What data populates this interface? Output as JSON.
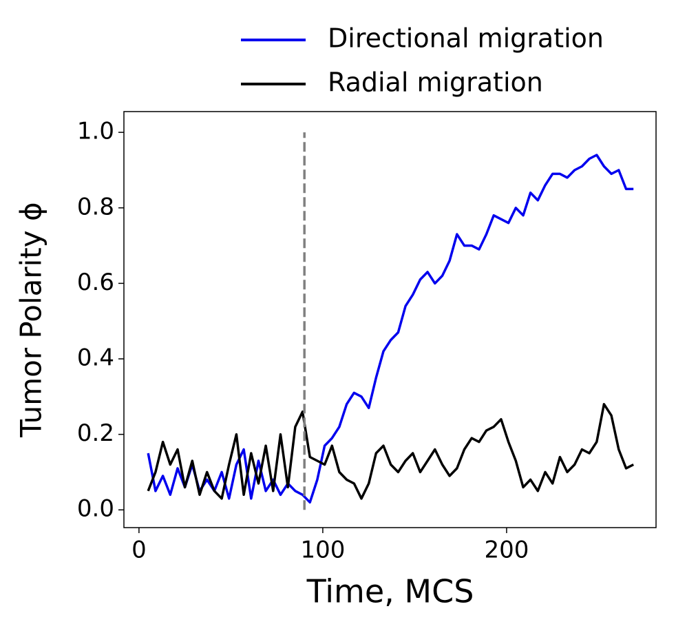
{
  "chart_data": {
    "type": "line",
    "x_label": "Time, MCS",
    "y_label": "Tumor Polarity ϕ",
    "x": [
      5,
      9,
      13,
      17,
      21,
      25,
      29,
      33,
      37,
      41,
      45,
      49,
      53,
      57,
      61,
      65,
      69,
      73,
      77,
      81,
      85,
      89,
      93,
      97,
      101,
      105,
      109,
      113,
      117,
      121,
      125,
      129,
      133,
      137,
      141,
      145,
      149,
      153,
      157,
      161,
      165,
      169,
      173,
      177,
      181,
      185,
      189,
      193,
      197,
      201,
      205,
      209,
      213,
      217,
      221,
      225,
      229,
      233,
      237,
      241,
      245,
      249,
      253,
      257,
      261,
      265,
      269
    ],
    "series": [
      {
        "name": "Directional migration",
        "color": "#0000ee",
        "values": [
          0.15,
          0.05,
          0.09,
          0.04,
          0.11,
          0.06,
          0.12,
          0.05,
          0.08,
          0.05,
          0.1,
          0.03,
          0.12,
          0.16,
          0.03,
          0.13,
          0.05,
          0.08,
          0.04,
          0.07,
          0.05,
          0.04,
          0.02,
          0.08,
          0.17,
          0.19,
          0.22,
          0.28,
          0.31,
          0.3,
          0.27,
          0.35,
          0.42,
          0.45,
          0.47,
          0.54,
          0.57,
          0.61,
          0.63,
          0.6,
          0.62,
          0.66,
          0.73,
          0.7,
          0.7,
          0.69,
          0.73,
          0.78,
          0.77,
          0.76,
          0.8,
          0.78,
          0.84,
          0.82,
          0.86,
          0.89,
          0.89,
          0.88,
          0.9,
          0.91,
          0.93,
          0.94,
          0.91,
          0.89,
          0.9,
          0.85,
          0.85
        ]
      },
      {
        "name": "Radial migration",
        "color": "#000000",
        "values": [
          0.05,
          0.1,
          0.18,
          0.12,
          0.16,
          0.06,
          0.13,
          0.04,
          0.1,
          0.05,
          0.03,
          0.12,
          0.2,
          0.04,
          0.15,
          0.07,
          0.17,
          0.05,
          0.2,
          0.06,
          0.22,
          0.26,
          0.14,
          0.13,
          0.12,
          0.17,
          0.1,
          0.08,
          0.07,
          0.03,
          0.07,
          0.15,
          0.17,
          0.12,
          0.1,
          0.13,
          0.15,
          0.1,
          0.13,
          0.16,
          0.12,
          0.09,
          0.11,
          0.16,
          0.19,
          0.18,
          0.21,
          0.22,
          0.24,
          0.18,
          0.13,
          0.06,
          0.08,
          0.05,
          0.1,
          0.07,
          0.14,
          0.1,
          0.12,
          0.16,
          0.15,
          0.18,
          0.28,
          0.25,
          0.16,
          0.11,
          0.12
        ]
      }
    ],
    "vline": {
      "x": 90,
      "ymin": 0,
      "ymax": 1,
      "color": "#808080"
    },
    "xlim": [
      -8.2,
      281.3
    ],
    "ylim": [
      -0.047,
      1.055
    ],
    "xticks": [
      0,
      100,
      200
    ],
    "yticks": [
      {
        "value": 0,
        "label": "0.0"
      },
      {
        "value": 0.2,
        "label": "0.2"
      },
      {
        "value": 0.4,
        "label": "0.4"
      },
      {
        "value": 0.6,
        "label": "0.6"
      },
      {
        "value": 0.8,
        "label": "0.8"
      },
      {
        "value": 1,
        "label": "1.0"
      }
    ],
    "grid": false,
    "legend": "upper right outside"
  }
}
